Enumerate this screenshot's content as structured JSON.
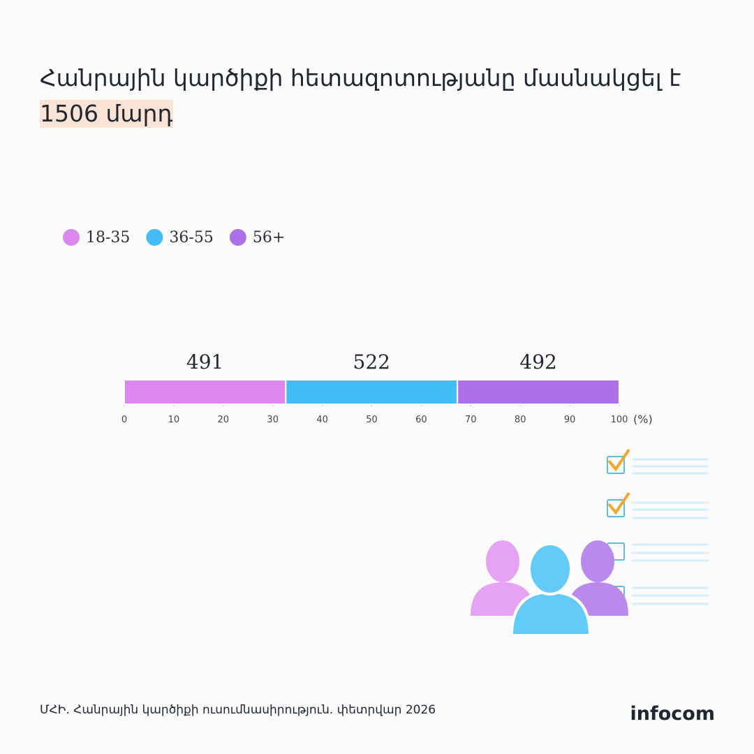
{
  "chart_data": {
    "type": "bar",
    "orientation": "horizontal",
    "stacking": "percent",
    "title": "Հանրային կարծիքի հետազոտությանը մասնակցել է",
    "title_highlight": "1506 մարդ",
    "series": [
      {
        "name": "18-35",
        "color": "#dc87f0",
        "values": [
          491
        ]
      },
      {
        "name": "36-55",
        "color": "#43bdf5",
        "values": [
          522
        ]
      },
      {
        "name": "56+",
        "color": "#ae70e8",
        "values": [
          492
        ]
      }
    ],
    "xlim": [
      0,
      100
    ],
    "xticks": [
      0,
      10,
      20,
      30,
      40,
      50,
      60,
      70,
      80,
      90,
      100
    ],
    "x_label": "(%)",
    "source": "ՄՀԻ. Հանրային կարծիքի  ուսումնասիրություն. փետրվար 2026",
    "brand": "infocom"
  }
}
